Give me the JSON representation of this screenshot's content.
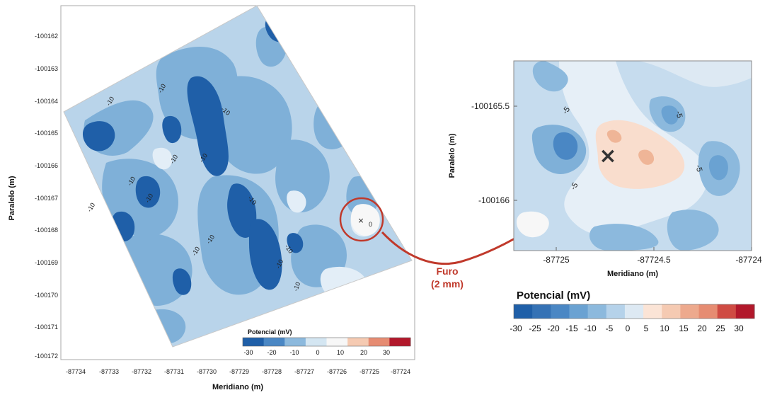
{
  "chart_data": [
    {
      "type": "heatmap",
      "subtype": "filled-contour",
      "xlabel": "Meridiano (m)",
      "ylabel": "Paralelo (m)",
      "x_ticks": [
        "-87734",
        "-87733",
        "-87732",
        "-87731",
        "-87730",
        "-87729",
        "-87728",
        "-87727",
        "-87726",
        "-87725",
        "-87724"
      ],
      "y_ticks": [
        "-100162",
        "-100163",
        "-100164",
        "-100165",
        "-100166",
        "-100167",
        "-100168",
        "-100169",
        "-100170",
        "-100171",
        "-100172"
      ],
      "xlim": [
        -87734.5,
        -87723.5
      ],
      "ylim": [
        -100172.2,
        -100161.6
      ],
      "contour_labels": [
        "-10",
        "-10",
        "-10",
        "-10",
        "-10",
        "-10",
        "-10",
        "-10",
        "-10",
        "-10",
        "-10",
        "-10",
        "-10",
        "-10",
        "0"
      ],
      "marker": "×",
      "colorbar": {
        "title": "Potencial (mV)",
        "ticks": [
          "-30",
          "-20",
          "-10",
          "0",
          "10",
          "20",
          "30"
        ],
        "colors": [
          "#1f5fa8",
          "#4a87c4",
          "#8cb9dd",
          "#d4e6f2",
          "#f7f7f7",
          "#f5cab2",
          "#e68c72",
          "#b2182b"
        ]
      }
    },
    {
      "type": "heatmap",
      "subtype": "filled-contour",
      "xlabel": "Meridiano (m)",
      "ylabel": "Paralelo (m)",
      "x_ticks": [
        "-87725",
        "-87724.5",
        "-87724"
      ],
      "y_ticks": [
        "-100165.5",
        "-100166"
      ],
      "xlim": [
        -87725.3,
        -87724
      ],
      "ylim": [
        -100166.15,
        -100165.3
      ],
      "contour_labels": [
        "-5",
        "-5",
        "-5",
        "-5"
      ],
      "marker": "×",
      "colorbar": {
        "title": "Potencial (mV)",
        "ticks": [
          "-30",
          "-25",
          "-20",
          "-15",
          "-10",
          "-5",
          "0",
          "5",
          "10",
          "15",
          "20",
          "25",
          "30"
        ],
        "colors": [
          "#1f5fa8",
          "#3572b5",
          "#4a87c4",
          "#6aa2d2",
          "#8cb9dd",
          "#b5d2ea",
          "#dde9f3",
          "#fbe4d6",
          "#f5cab2",
          "#eda98d",
          "#e68c72",
          "#cf4b43",
          "#b2182b"
        ]
      }
    }
  ],
  "annotation": {
    "line1": "Furo",
    "line2": "(2 mm)",
    "color": "#c0392b"
  }
}
